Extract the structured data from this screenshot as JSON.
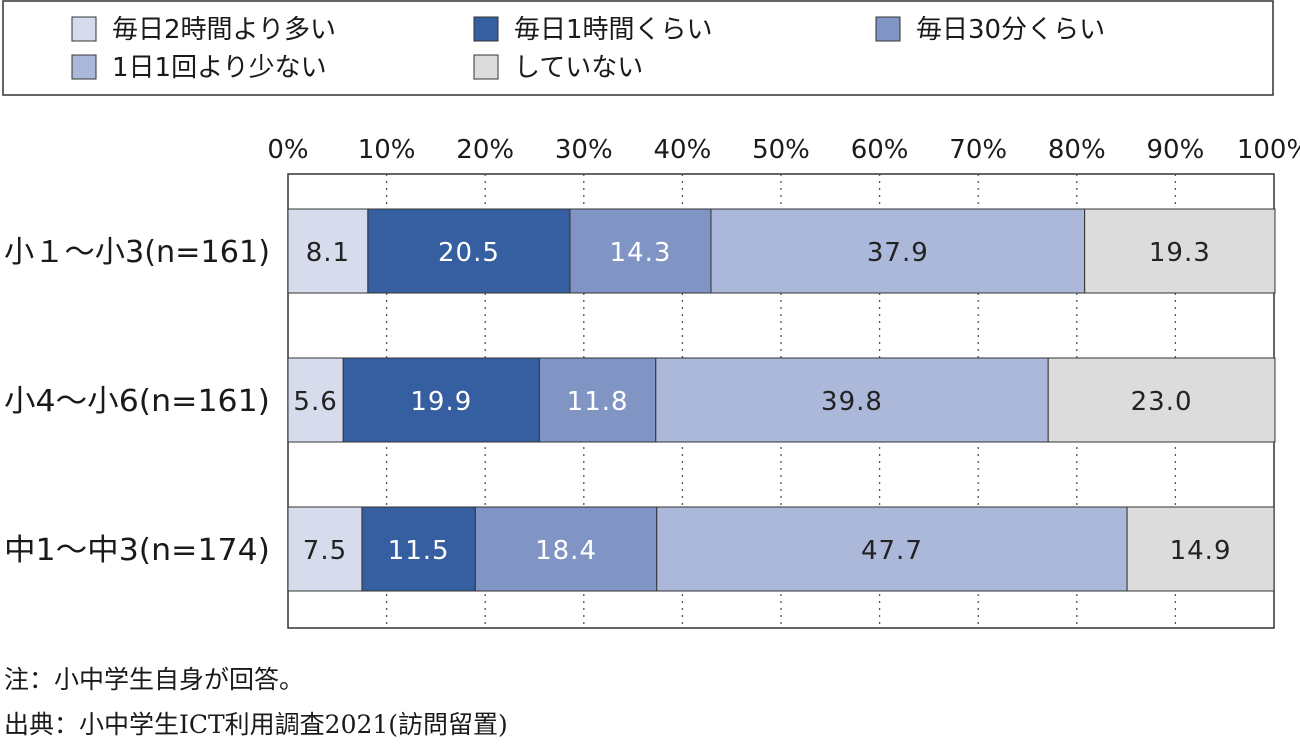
{
  "chart_data": {
    "type": "bar",
    "orientation": "horizontal",
    "stacked": true,
    "categories": [
      "小１～小3(n=161)",
      "小4～小6(n=161)",
      "中1～中3(n=174)"
    ],
    "series": [
      {
        "name": "毎日2時間より多い",
        "color": "#d6dcec",
        "label_color": "#222222",
        "values": [
          8.1,
          5.6,
          7.5
        ]
      },
      {
        "name": "毎日1時間くらい",
        "color": "#365fa1",
        "label_color": "#ffffff",
        "values": [
          20.5,
          19.9,
          11.5
        ]
      },
      {
        "name": "毎日30分くらい",
        "color": "#8095c4",
        "label_color": "#ffffff",
        "values": [
          14.3,
          11.8,
          18.4
        ]
      },
      {
        "name": "1日1回より少ない",
        "color": "#abb8da",
        "label_color": "#222222",
        "values": [
          37.9,
          39.8,
          47.7
        ]
      },
      {
        "name": "していない",
        "color": "#dcdcdc",
        "label_color": "#222222",
        "values": [
          19.3,
          23.0,
          14.9
        ]
      }
    ],
    "value_labels": [
      [
        "8.1",
        "20.5",
        "14.3",
        "37.9",
        "19.3"
      ],
      [
        "5.6",
        "19.9",
        "11.8",
        "39.8",
        "23.0"
      ],
      [
        "7.5",
        "11.5",
        "18.4",
        "47.7",
        "14.9"
      ]
    ],
    "xlim": [
      0,
      100
    ],
    "x_ticks": [
      "0%",
      "10%",
      "20%",
      "30%",
      "40%",
      "50%",
      "60%",
      "70%",
      "80%",
      "90%",
      "100%"
    ],
    "x_tick_values": [
      0,
      10,
      20,
      30,
      40,
      50,
      60,
      70,
      80,
      90,
      100
    ],
    "grid": "vertical-dotted",
    "legend": "top"
  },
  "notes": {
    "note": "注：小中学生自身が回答。",
    "source": "出典：小中学生ICT利用調査2021(訪問留置)"
  }
}
